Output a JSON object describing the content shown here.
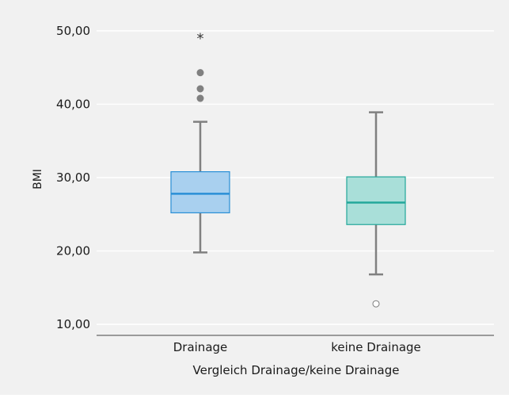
{
  "chart_data": {
    "type": "boxplot",
    "title": "",
    "xlabel": "Vergleich Drainage/keine Drainage",
    "ylabel": "BMI",
    "ylim": [
      8.5,
      51.5
    ],
    "yticks": [
      10,
      20,
      30,
      40,
      50
    ],
    "ytick_labels": [
      "10,00",
      "20,00",
      "30,00",
      "40,00",
      "50,00"
    ],
    "grid": true,
    "categories": [
      "Drainage",
      "keine Drainage"
    ],
    "boxes": [
      {
        "category": "Drainage",
        "whisker_low": 19.8,
        "q1": 25.2,
        "median": 27.8,
        "q3": 30.8,
        "whisker_high": 37.6,
        "outliers": [
          40.8,
          42.1,
          44.3
        ],
        "extremes": [
          49.3
        ],
        "fill_color": "#a9d0ef",
        "line_color": "#2a8fd6"
      },
      {
        "category": "keine Drainage",
        "whisker_low": 16.8,
        "q1": 23.6,
        "median": 26.6,
        "q3": 30.1,
        "whisker_high": 38.9,
        "outliers": [
          12.8
        ],
        "extremes": [],
        "fill_color": "#a9dfd9",
        "line_color": "#22a79a"
      }
    ],
    "colors": {
      "background": "#f1f1f1",
      "grid": "#ffffff",
      "axis": "#9a9a9a",
      "whisker": "#808080",
      "outlier_fill": "#808080"
    }
  }
}
